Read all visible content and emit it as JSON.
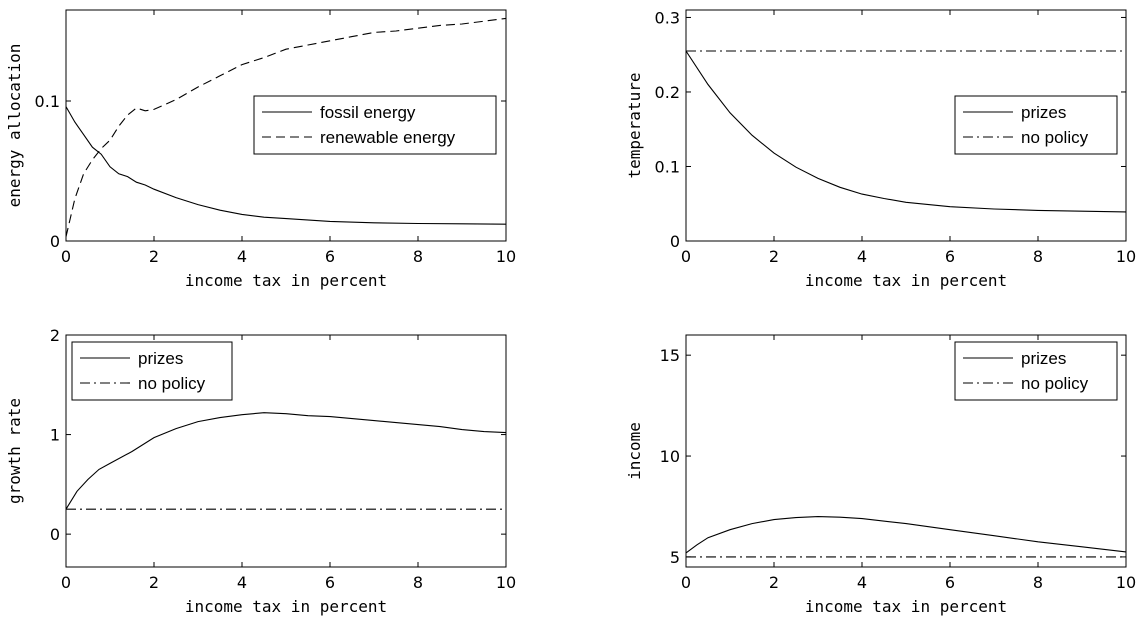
{
  "chart_data": [
    {
      "type": "line",
      "xlabel": "income tax in percent",
      "ylabel": "energy allocation",
      "xlim": [
        0,
        10
      ],
      "ylim": [
        0,
        0.165
      ],
      "xticks": [
        0,
        2,
        4,
        6,
        8,
        10
      ],
      "yticks": [
        0,
        0.1
      ],
      "tick_labels_x": [
        "0",
        "2",
        "4",
        "6",
        "8",
        "10"
      ],
      "tick_labels_y": [
        "0",
        "0.1"
      ],
      "legend_position": "right-middle",
      "series": [
        {
          "name": "fossil energy",
          "style": "solid",
          "x": [
            0,
            0.2,
            0.4,
            0.6,
            0.8,
            1.0,
            1.2,
            1.4,
            1.6,
            1.8,
            2.0,
            2.5,
            3.0,
            3.5,
            4.0,
            4.5,
            5.0,
            6.0,
            7.0,
            8.0,
            9.0,
            10.0
          ],
          "y": [
            0.096,
            0.085,
            0.076,
            0.067,
            0.062,
            0.053,
            0.048,
            0.046,
            0.042,
            0.04,
            0.037,
            0.031,
            0.026,
            0.022,
            0.019,
            0.017,
            0.016,
            0.014,
            0.013,
            0.0125,
            0.0123,
            0.012
          ]
        },
        {
          "name": "renewable energy",
          "style": "dashed",
          "x": [
            0,
            0.2,
            0.4,
            0.6,
            0.8,
            1.0,
            1.2,
            1.4,
            1.6,
            1.8,
            2.0,
            2.5,
            3.0,
            3.5,
            4.0,
            4.5,
            5.0,
            5.5,
            6.0,
            6.5,
            7.0,
            7.5,
            8.0,
            8.5,
            9.0,
            9.5,
            10.0
          ],
          "y": [
            0.003,
            0.03,
            0.048,
            0.058,
            0.066,
            0.072,
            0.082,
            0.09,
            0.095,
            0.093,
            0.094,
            0.101,
            0.11,
            0.118,
            0.126,
            0.131,
            0.137,
            0.14,
            0.143,
            0.146,
            0.149,
            0.15,
            0.152,
            0.154,
            0.155,
            0.157,
            0.159
          ]
        }
      ]
    },
    {
      "type": "line",
      "xlabel": "income tax in percent",
      "ylabel": "temperature",
      "xlim": [
        0,
        10
      ],
      "ylim": [
        0,
        0.31
      ],
      "xticks": [
        0,
        2,
        4,
        6,
        8,
        10
      ],
      "yticks": [
        0,
        0.1,
        0.2,
        0.3
      ],
      "tick_labels_x": [
        "0",
        "2",
        "4",
        "6",
        "8",
        "10"
      ],
      "tick_labels_y": [
        "0",
        "0.1",
        "0.2",
        "0.3"
      ],
      "legend_position": "right-middle",
      "series": [
        {
          "name": "prizes",
          "style": "solid",
          "x": [
            0,
            0.5,
            1.0,
            1.5,
            2.0,
            2.5,
            3.0,
            3.5,
            4.0,
            4.5,
            5.0,
            6.0,
            7.0,
            8.0,
            9.0,
            10.0
          ],
          "y": [
            0.255,
            0.21,
            0.172,
            0.142,
            0.118,
            0.099,
            0.084,
            0.072,
            0.063,
            0.057,
            0.052,
            0.046,
            0.043,
            0.041,
            0.04,
            0.039
          ]
        },
        {
          "name": "no policy",
          "style": "dashdot",
          "x": [
            0,
            10
          ],
          "y": [
            0.255,
            0.255
          ]
        }
      ]
    },
    {
      "type": "line",
      "xlabel": "income tax in percent",
      "ylabel": "growth rate",
      "xlim": [
        0,
        10
      ],
      "ylim": [
        -0.33,
        2
      ],
      "xticks": [
        0,
        2,
        4,
        6,
        8,
        10
      ],
      "yticks": [
        0,
        1,
        2
      ],
      "tick_labels_x": [
        "0",
        "2",
        "4",
        "6",
        "8",
        "10"
      ],
      "tick_labels_y": [
        "0",
        "1",
        "2"
      ],
      "legend_position": "top-left",
      "series": [
        {
          "name": "prizes",
          "style": "solid",
          "x": [
            0,
            0.25,
            0.5,
            0.75,
            1.0,
            1.5,
            2.0,
            2.5,
            3.0,
            3.5,
            4.0,
            4.5,
            5.0,
            5.5,
            6.0,
            6.5,
            7.0,
            7.5,
            8.0,
            8.5,
            9.0,
            9.5,
            10.0
          ],
          "y": [
            0.25,
            0.43,
            0.55,
            0.65,
            0.71,
            0.83,
            0.97,
            1.06,
            1.13,
            1.17,
            1.2,
            1.22,
            1.21,
            1.19,
            1.18,
            1.16,
            1.14,
            1.12,
            1.1,
            1.08,
            1.05,
            1.03,
            1.02
          ]
        },
        {
          "name": "no policy",
          "style": "dashdot",
          "x": [
            0,
            10
          ],
          "y": [
            0.25,
            0.25
          ]
        }
      ]
    },
    {
      "type": "line",
      "xlabel": "income tax in percent",
      "ylabel": "income",
      "xlim": [
        0,
        10
      ],
      "ylim": [
        4.5,
        16
      ],
      "xticks": [
        0,
        2,
        4,
        6,
        8,
        10
      ],
      "yticks": [
        5,
        10,
        15
      ],
      "tick_labels_x": [
        "0",
        "2",
        "4",
        "6",
        "8",
        "10"
      ],
      "tick_labels_y": [
        "5",
        "10",
        "15"
      ],
      "legend_position": "top-right",
      "series": [
        {
          "name": "prizes",
          "style": "solid",
          "x": [
            0,
            0.25,
            0.5,
            1.0,
            1.5,
            2.0,
            2.5,
            3.0,
            3.5,
            4.0,
            5.0,
            6.0,
            7.0,
            8.0,
            9.0,
            10.0
          ],
          "y": [
            5.2,
            5.6,
            5.95,
            6.35,
            6.65,
            6.85,
            6.95,
            7.0,
            6.97,
            6.9,
            6.65,
            6.35,
            6.05,
            5.75,
            5.5,
            5.25
          ]
        },
        {
          "name": "no policy",
          "style": "dashdot",
          "x": [
            0,
            10
          ],
          "y": [
            5.0,
            5.0
          ]
        }
      ]
    }
  ]
}
